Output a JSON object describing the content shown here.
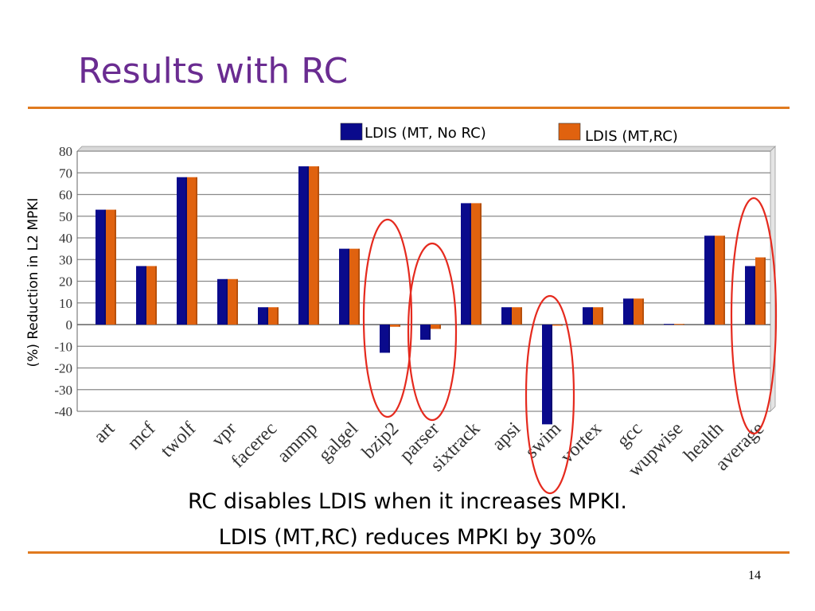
{
  "slide": {
    "title": "Results with RC",
    "caption_line1": "RC  disables LDIS when it increases MPKI.",
    "caption_line2": "LDIS (MT,RC) reduces MPKI by 30%",
    "page_number": "14"
  },
  "colors": {
    "title": "#6a2c91",
    "rule": "#e07a1f",
    "series_1": "#0a0a8c",
    "series_2": "#e0620f",
    "highlight_ellipse": "#e52a1e"
  },
  "chart_data": {
    "type": "bar",
    "ylabel": "(%) Reduction in L2 MPKI",
    "xlabel": "",
    "ylim": [
      -40,
      80
    ],
    "yticks": [
      80,
      70,
      60,
      50,
      40,
      30,
      20,
      10,
      0,
      -10,
      -20,
      -30,
      -40
    ],
    "grid": true,
    "legend_position": "top",
    "categories": [
      "art",
      "mcf",
      "twolf",
      "vpr",
      "facerec",
      "ammp",
      "galgel",
      "bzip2",
      "parser",
      "sixtrack",
      "apsi",
      "swim",
      "vortex",
      "gcc",
      "wupwise",
      "health",
      "average"
    ],
    "series": [
      {
        "name": "LDIS (MT, No RC)",
        "values": [
          53,
          27,
          68,
          21,
          8,
          73,
          35,
          -13,
          -7,
          56,
          8,
          -46,
          8,
          12,
          0.3,
          41,
          27
        ]
      },
      {
        "name": "LDIS (MT,RC)",
        "values": [
          53,
          27,
          68,
          21,
          8,
          73,
          35,
          -1,
          -2,
          56,
          8,
          -0.5,
          8,
          12,
          0.3,
          41,
          31
        ]
      }
    ],
    "highlighted_categories": [
      "bzip2",
      "parser",
      "swim",
      "average"
    ]
  }
}
